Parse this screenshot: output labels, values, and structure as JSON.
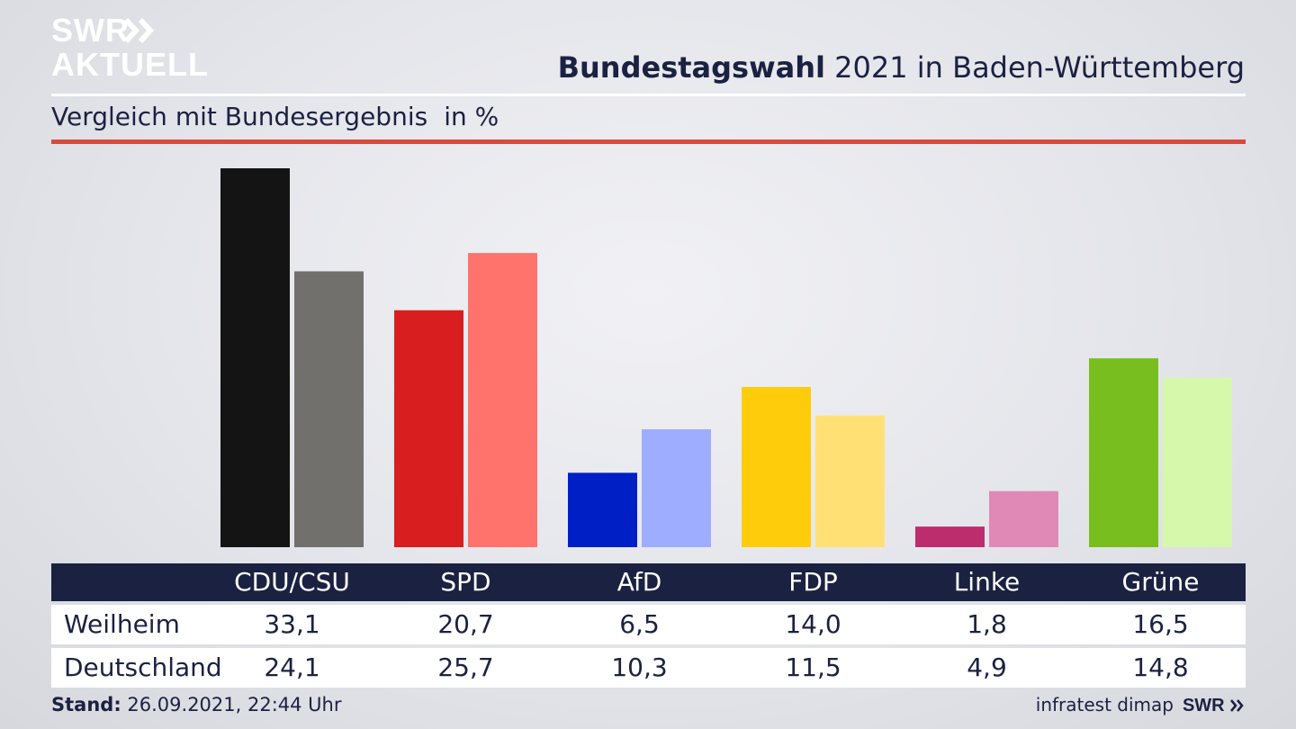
{
  "branding": {
    "logo_line1": "SWR",
    "logo_line2": "AKTUELL",
    "footer_logo": "SWR"
  },
  "header": {
    "title_bold": "Bundestagswahl",
    "title_rest": " 2021 in Baden-Württemberg",
    "subtitle": "Vergleich mit Bundesergebnis",
    "unit": "in %"
  },
  "footer": {
    "stand_label": "Stand:",
    "stand_value": " 26.09.2021, 22:44 Uhr",
    "source": "infratest dimap"
  },
  "chart_data": {
    "type": "bar",
    "categories": [
      "CDU/CSU",
      "SPD",
      "AfD",
      "FDP",
      "Linke",
      "Grüne"
    ],
    "series": [
      {
        "name": "Weilheim",
        "values": [
          33.1,
          20.7,
          6.5,
          14.0,
          1.8,
          16.5
        ],
        "colors": [
          "#141414",
          "#d81e1e",
          "#0020c6",
          "#ffcc0c",
          "#bc2d6e",
          "#79be1f"
        ]
      },
      {
        "name": "Deutschland",
        "values": [
          24.1,
          25.7,
          10.3,
          11.5,
          4.9,
          14.8
        ],
        "colors": [
          "#72706d",
          "#ff736c",
          "#9eadff",
          "#ffe074",
          "#e089b7",
          "#d5f8ab"
        ]
      }
    ],
    "display_values": {
      "Weilheim": [
        "33,1",
        "20,7",
        "6,5",
        "14,0",
        "1,8",
        "16,5"
      ],
      "Deutschland": [
        "24,1",
        "25,7",
        "10,3",
        "11,5",
        "4,9",
        "14,8"
      ]
    },
    "ylim": [
      0,
      33.1
    ],
    "grid": false,
    "legend": "table-below"
  }
}
